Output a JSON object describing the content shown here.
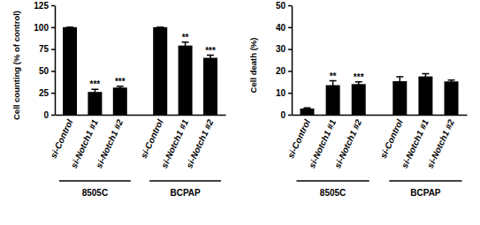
{
  "chart_data": [
    {
      "type": "bar",
      "y_label": "Cell counting (% of control)",
      "categories": [
        "si-Control",
        "si-Notch1 #1",
        "si-Notch1 #2",
        "si-Control",
        "si-Notch1 #1",
        "si-Notch1 #2"
      ],
      "category_groups": [
        "8505C",
        "8505C",
        "8505C",
        "BCPAP",
        "BCPAP",
        "BCPAP"
      ],
      "values": [
        100,
        26,
        31,
        100,
        79,
        65
      ],
      "errors": [
        0,
        3,
        1.5,
        0,
        4,
        3
      ],
      "significance": [
        null,
        "***",
        "***",
        null,
        "**",
        "***"
      ],
      "color": "#000000",
      "ylim": [
        0,
        125
      ],
      "yticks": [
        0,
        25,
        50,
        75,
        100,
        125
      ]
    },
    {
      "type": "bar",
      "y_label": "Cell death (%)",
      "categories": [
        "si-Control",
        "si-Notch1 #1",
        "si-Notch1 #2",
        "si-Control",
        "si-Notch1 #1",
        "si-Notch1 #2"
      ],
      "category_groups": [
        "8505C",
        "8505C",
        "8505C",
        "BCPAP",
        "BCPAP",
        "BCPAP"
      ],
      "values": [
        2.8,
        13.5,
        14,
        15.3,
        17.5,
        15.2
      ],
      "errors": [
        0.3,
        2,
        1,
        2,
        1.2,
        0.6
      ],
      "significance": [
        null,
        "**",
        "***",
        null,
        null,
        null
      ],
      "color": "#000000",
      "ylim": [
        0,
        50
      ],
      "yticks": [
        0,
        10,
        20,
        30,
        40,
        50
      ]
    }
  ]
}
